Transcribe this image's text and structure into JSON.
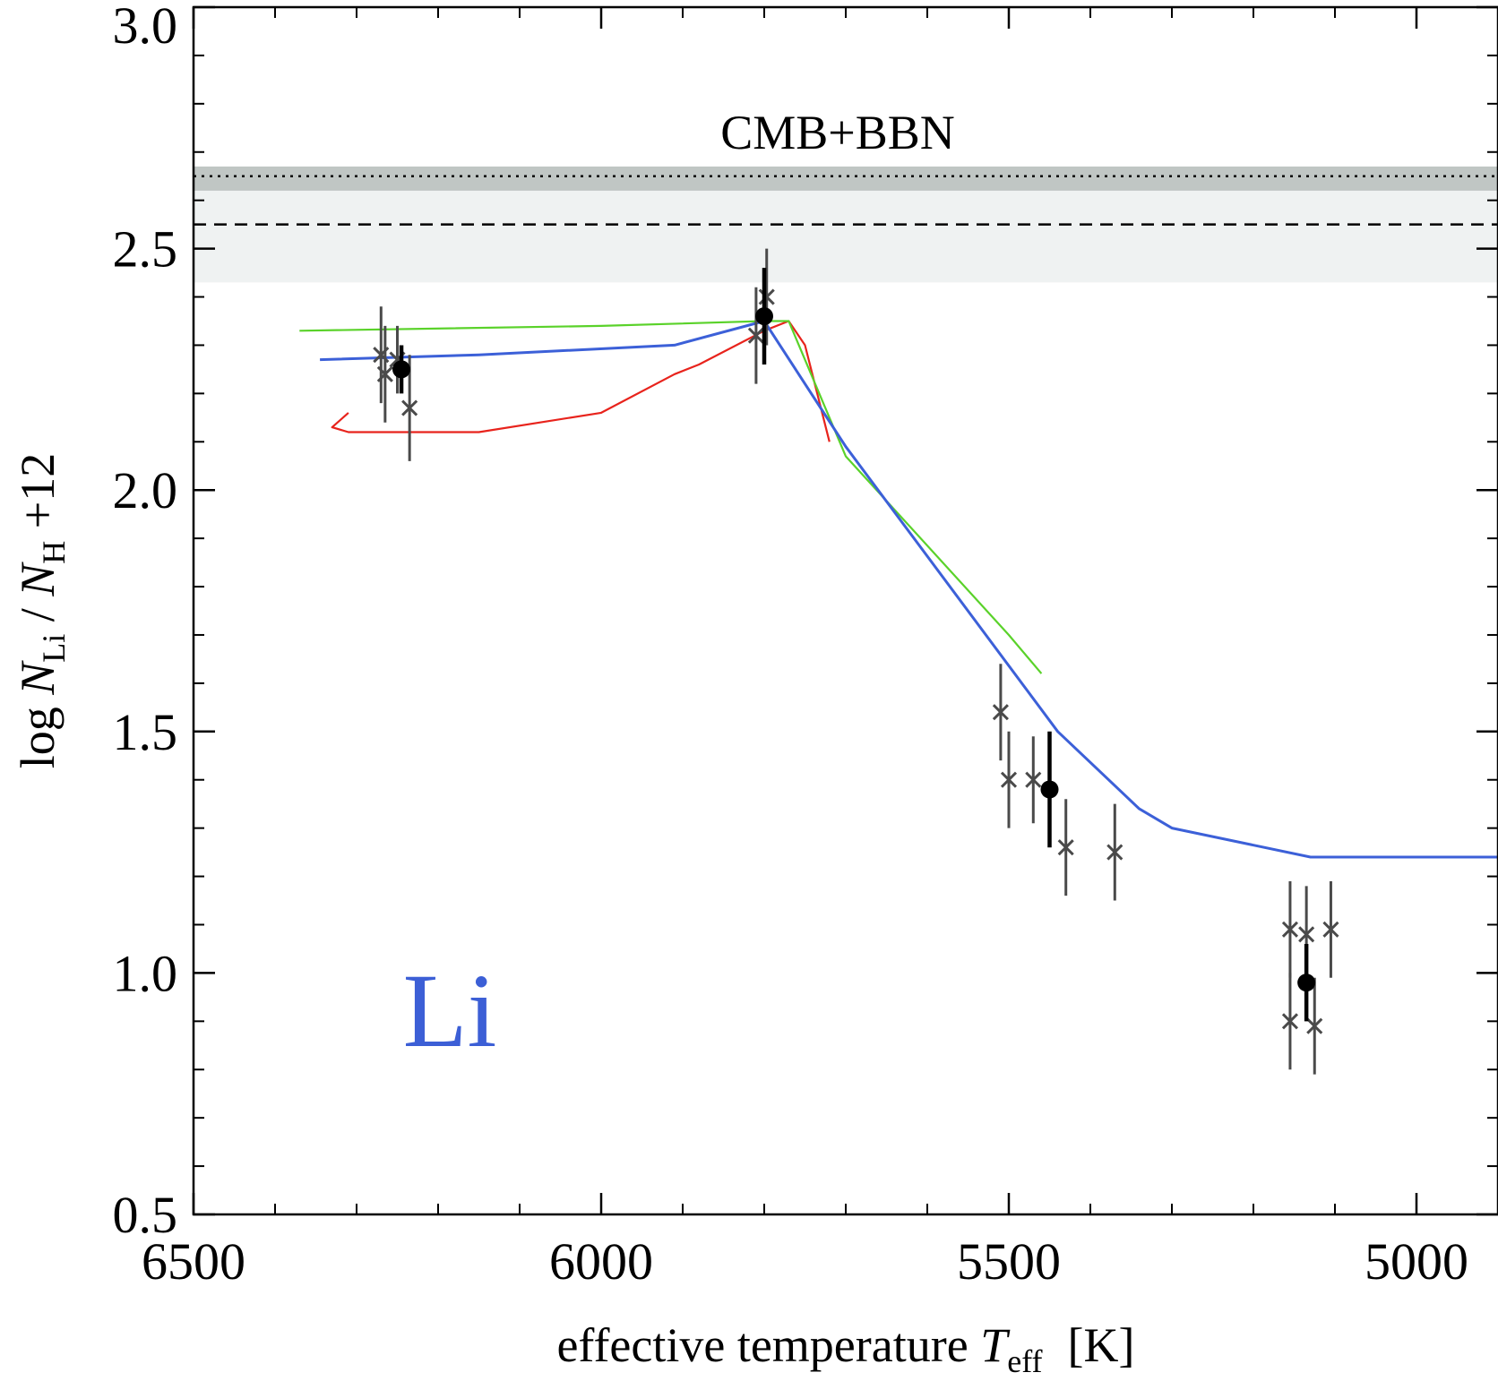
{
  "chart_data": {
    "type": "line",
    "xlabel_parts": {
      "main": "effective temperature ",
      "symbol": "T",
      "sub": "eff",
      "unit": "[K]"
    },
    "ylabel_parts": {
      "pre": "log ",
      "n1": "N",
      "sub1": "Li",
      "slash": " / ",
      "n2": "N",
      "sub2": "H",
      "post": " +12"
    },
    "xlim": [
      6500,
      4900
    ],
    "ylim": [
      0.5,
      3.0
    ],
    "x_reversed": true,
    "grid": false,
    "legend": "none",
    "xticks": [
      6500,
      6000,
      5500,
      5000
    ],
    "xtick_labels": [
      "6500",
      "6000",
      "5500",
      "5000"
    ],
    "x_minor_ticks": [
      6400,
      6300,
      6200,
      6100,
      5900,
      5800,
      5700,
      5600,
      5400,
      5300,
      5200,
      5100
    ],
    "yticks": [
      0.5,
      1.0,
      1.5,
      2.0,
      2.5,
      3.0
    ],
    "ytick_labels": [
      "0.5",
      "1.0",
      "1.5",
      "2.0",
      "2.5",
      "3.0"
    ],
    "y_minor_ticks": [
      0.6,
      0.7,
      0.8,
      0.9,
      1.1,
      1.2,
      1.3,
      1.4,
      1.6,
      1.7,
      1.8,
      1.9,
      2.1,
      2.2,
      2.3,
      2.4,
      2.6,
      2.7,
      2.8,
      2.9
    ],
    "annotations": {
      "band_label": "CMB+BBN",
      "element_label": "Li"
    },
    "bands": [
      {
        "ymin": 2.43,
        "ymax": 2.67,
        "color": "#eff2f2"
      },
      {
        "ymin": 2.62,
        "ymax": 2.67,
        "color": "#c0c6c4"
      }
    ],
    "hlines": [
      {
        "y": 2.65,
        "style": "dotted",
        "color": "#000000"
      },
      {
        "y": 2.55,
        "style": "dashed",
        "color": "#000000"
      }
    ],
    "series": [
      {
        "color": "#e8231c",
        "width": 2.2,
        "x": [
          6310,
          6330,
          6310,
          6150,
          6000,
          5910,
          5880,
          5800,
          5770,
          5750,
          5720
        ],
        "y": [
          2.16,
          2.13,
          2.12,
          2.12,
          2.16,
          2.24,
          2.26,
          2.33,
          2.35,
          2.3,
          2.1
        ]
      },
      {
        "color": "#5ad22a",
        "width": 2.2,
        "x": [
          6370,
          6000,
          5800,
          5770,
          5700,
          5500,
          5460
        ],
        "y": [
          2.33,
          2.34,
          2.35,
          2.35,
          2.07,
          1.7,
          1.62
        ]
      },
      {
        "color": "#3c60d8",
        "width": 3,
        "x": [
          6345,
          6150,
          5910,
          5800,
          5700,
          5440,
          5340,
          5300,
          5130,
          4900
        ],
        "y": [
          2.27,
          2.28,
          2.3,
          2.35,
          2.09,
          1.5,
          1.34,
          1.3,
          1.24,
          1.24
        ]
      }
    ],
    "observations_x_marks": [
      {
        "x": 6270,
        "y": 2.28,
        "err": 0.1
      },
      {
        "x": 6265,
        "y": 2.24,
        "err": 0.1
      },
      {
        "x": 6250,
        "y": 2.27,
        "err": 0.07
      },
      {
        "x": 6235,
        "y": 2.17,
        "err": 0.11
      },
      {
        "x": 5810,
        "y": 2.32,
        "err": 0.1
      },
      {
        "x": 5797,
        "y": 2.4,
        "err": 0.1
      },
      {
        "x": 5510,
        "y": 1.54,
        "err": 0.1
      },
      {
        "x": 5500,
        "y": 1.4,
        "err": 0.1
      },
      {
        "x": 5470,
        "y": 1.4,
        "err": 0.09
      },
      {
        "x": 5430,
        "y": 1.26,
        "err": 0.1
      },
      {
        "x": 5370,
        "y": 1.25,
        "err": 0.1
      },
      {
        "x": 5155,
        "y": 1.09,
        "err": 0.1
      },
      {
        "x": 5155,
        "y": 0.9,
        "err": 0.1
      },
      {
        "x": 5135,
        "y": 1.08,
        "err": 0.1
      },
      {
        "x": 5125,
        "y": 0.89,
        "err": 0.1
      },
      {
        "x": 5105,
        "y": 1.09,
        "err": 0.1
      }
    ],
    "observations_means": [
      {
        "x": 6245,
        "y": 2.25,
        "err": 0.05
      },
      {
        "x": 5800,
        "y": 2.36,
        "err": 0.1
      },
      {
        "x": 5450,
        "y": 1.38,
        "err": 0.12
      },
      {
        "x": 5135,
        "y": 0.98,
        "err": 0.08
      }
    ]
  }
}
